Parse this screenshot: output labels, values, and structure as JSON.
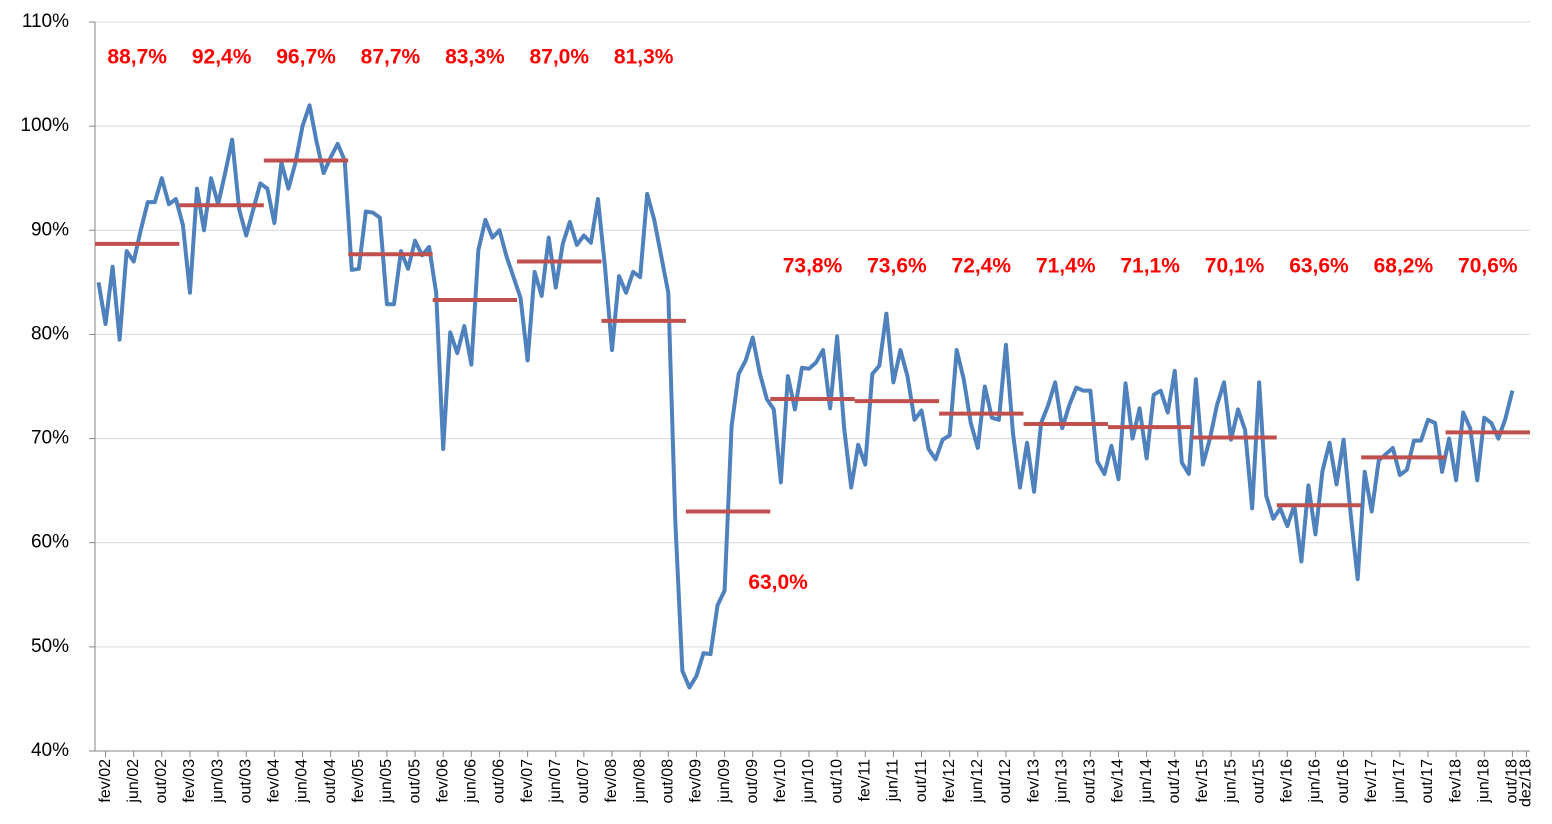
{
  "chart_data": {
    "type": "line",
    "categories": [
      null,
      "fev/02",
      null,
      null,
      null,
      "jun/02",
      null,
      null,
      null,
      "out/02",
      null,
      null,
      null,
      "fev/03",
      null,
      null,
      null,
      "jun/03",
      null,
      null,
      null,
      "out/03",
      null,
      null,
      null,
      "fev/04",
      null,
      null,
      null,
      "jun/04",
      null,
      null,
      null,
      "out/04",
      null,
      null,
      null,
      "fev/05",
      null,
      null,
      null,
      "jun/05",
      null,
      null,
      null,
      "out/05",
      null,
      null,
      null,
      "fev/06",
      null,
      null,
      null,
      "jun/06",
      null,
      null,
      null,
      "out/06",
      null,
      null,
      null,
      "fev/07",
      null,
      null,
      null,
      "jun/07",
      null,
      null,
      null,
      "out/07",
      null,
      null,
      null,
      "fev/08",
      null,
      null,
      null,
      "jun/08",
      null,
      null,
      null,
      "out/08",
      null,
      null,
      null,
      "fev/09",
      null,
      null,
      null,
      "jun/09",
      null,
      null,
      null,
      "out/09",
      null,
      null,
      null,
      "fev/10",
      null,
      null,
      null,
      "jun/10",
      null,
      null,
      null,
      "out/10",
      null,
      null,
      null,
      "fev/11",
      null,
      null,
      null,
      "jun/11",
      null,
      null,
      null,
      "out/11",
      null,
      null,
      null,
      "fev/12",
      null,
      null,
      null,
      "jun/12",
      null,
      null,
      null,
      "out/12",
      null,
      null,
      null,
      "fev/13",
      null,
      null,
      null,
      "jun/13",
      null,
      null,
      null,
      "out/13",
      null,
      null,
      null,
      "fev/14",
      null,
      null,
      null,
      "jun/14",
      null,
      null,
      null,
      "out/14",
      null,
      null,
      null,
      "fev/15",
      null,
      null,
      null,
      "jun/15",
      null,
      null,
      null,
      "out/15",
      null,
      null,
      null,
      "fev/16",
      null,
      null,
      null,
      "jun/16",
      null,
      null,
      null,
      "out/16",
      null,
      null,
      null,
      "fev/17",
      null,
      null,
      null,
      "jun/17",
      null,
      null,
      null,
      "out/17",
      null,
      null,
      null,
      "fev/18",
      null,
      null,
      null,
      "jun/18",
      null,
      null,
      null,
      "out/18",
      null,
      "dez/18"
    ],
    "series": [
      {
        "color": "#4f81bd",
        "values": [
          85,
          81,
          86.5,
          79.5,
          88,
          87,
          90,
          92.7,
          92.7,
          95,
          92.5,
          93,
          90.5,
          84,
          94,
          90,
          95,
          92.5,
          95.5,
          98.7,
          92,
          89.5,
          92,
          94.5,
          94,
          90.7,
          96.5,
          94,
          96.5,
          100,
          102,
          98.5,
          95.5,
          97,
          98.3,
          96.7,
          86.2,
          86.3,
          91.8,
          91.7,
          91.2,
          82.9,
          82.9,
          88,
          86.3,
          89,
          87.6,
          88.4,
          84,
          69,
          80.2,
          78.2,
          80.8,
          77.1,
          88.1,
          91,
          89.3,
          90,
          87.5,
          85.5,
          83.5,
          77.5,
          86,
          83.7,
          89.3,
          84.5,
          88.7,
          90.8,
          88.6,
          89.5,
          88.8,
          93,
          86.5,
          78.5,
          85.6,
          84,
          86,
          85.5,
          93.5,
          91,
          87.5,
          84,
          62,
          47.7,
          46.1,
          47.2,
          49.4,
          49.3,
          54,
          55.4,
          71.2,
          76.2,
          77.5,
          79.7,
          76.3,
          73.8,
          72.8,
          65.8,
          76,
          72.8,
          76.8,
          76.7,
          77.3,
          78.5,
          72.9,
          79.8,
          71,
          65.3,
          69.4,
          67.5,
          76.2,
          77,
          82,
          75.4,
          78.5,
          76,
          71.8,
          72.7,
          69,
          68,
          69.9,
          70.3,
          78.5,
          75.7,
          71.5,
          69.1,
          75,
          72,
          71.8,
          79,
          70.5,
          65.3,
          69.6,
          64.9,
          71.5,
          73.2,
          75.4,
          71,
          73.2,
          74.9,
          74.6,
          74.6,
          67.8,
          66.6,
          69.3,
          66.1,
          75.3,
          70,
          72.9,
          68.1,
          74.2,
          74.6,
          72.5,
          76.5,
          67.7,
          66.6,
          75.7,
          67.5,
          70,
          73.2,
          75.4,
          69.9,
          72.8,
          70.8,
          63.3,
          75.4,
          64.5,
          62.3,
          63.3,
          61.6,
          63.6,
          58.2,
          65.5,
          60.8,
          66.9,
          69.6,
          65.6,
          69.9,
          62.8,
          56.5,
          66.8,
          63,
          67.9,
          68.5,
          69.1,
          66.5,
          67,
          69.8,
          69.8,
          71.8,
          71.5,
          66.8,
          70,
          66,
          72.5,
          71,
          66,
          72,
          71.5,
          70,
          71.9,
          74.6,
          null,
          null
        ]
      }
    ],
    "annual_averages": {
      "color": "#c0504d",
      "label_color": "#ff0000",
      "values": [
        88.7,
        92.4,
        96.7,
        87.7,
        83.3,
        87.0,
        81.3,
        63.0,
        73.8,
        73.6,
        72.4,
        71.4,
        71.1,
        70.1,
        63.6,
        68.2,
        70.6
      ],
      "value_labels": [
        "88,7%",
        "92,4%",
        "96,7%",
        "87,7%",
        "83,3%",
        "87,0%",
        "81,3%",
        "63,0%",
        "73,8%",
        "73,6%",
        "72,4%",
        "71,4%",
        "71,1%",
        "70,1%",
        "63,6%",
        "68,2%",
        "70,6%"
      ]
    },
    "ylim": [
      40,
      110
    ],
    "yticks": [
      {
        "value": 40,
        "label": "40%"
      },
      {
        "value": 50,
        "label": "50%"
      },
      {
        "value": 60,
        "label": "60%"
      },
      {
        "value": 70,
        "label": "70%"
      },
      {
        "value": 80,
        "label": "80%"
      },
      {
        "value": 90,
        "label": "90%"
      },
      {
        "value": 100,
        "label": "100%"
      },
      {
        "value": 110,
        "label": "110%"
      }
    ],
    "grid": true
  }
}
